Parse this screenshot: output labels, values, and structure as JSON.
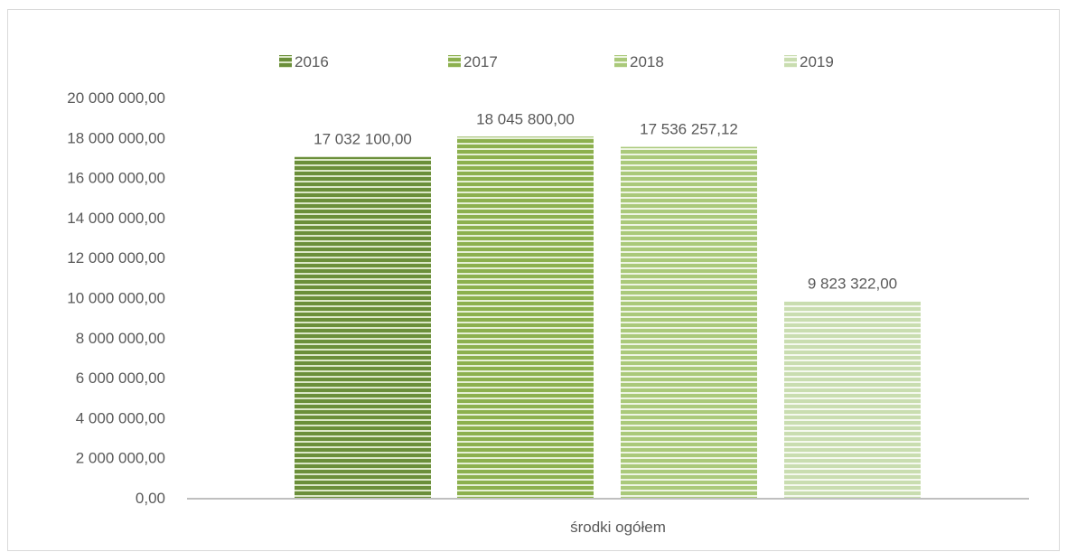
{
  "chart_data": {
    "type": "bar",
    "categories": [
      "środki ogółem"
    ],
    "series": [
      {
        "name": "2016",
        "values": [
          17032100.0
        ],
        "label": "17 032 100,00",
        "color": "#6b8f3a",
        "stripe": "#dce8c8"
      },
      {
        "name": "2017",
        "values": [
          18045800.0
        ],
        "label": "18 045 800,00",
        "color": "#8cb04e",
        "stripe": "#e6f0d6"
      },
      {
        "name": "2018",
        "values": [
          17536257.12
        ],
        "label": "17 536 257,12",
        "color": "#aac97a",
        "stripe": "#eef5e3"
      },
      {
        "name": "2019",
        "values": [
          9823322.0
        ],
        "label": "9 823 322,00",
        "color": "#c9ddb0",
        "stripe": "#f5f9ef"
      }
    ],
    "ylim": [
      0,
      20000000
    ],
    "yticks": [
      0,
      2000000,
      4000000,
      6000000,
      8000000,
      10000000,
      12000000,
      14000000,
      16000000,
      18000000,
      20000000
    ],
    "ytick_labels": [
      "0,00",
      "2 000 000,00",
      "4 000 000,00",
      "6 000 000,00",
      "8 000 000,00",
      "10 000 000,00",
      "12 000 000,00",
      "14 000 000,00",
      "16 000 000,00",
      "18 000 000,00",
      "20 000 000,00"
    ],
    "title": "",
    "xlabel": "",
    "ylabel": "",
    "grid": false,
    "legend_position": "top",
    "axis_color": "#bfbfbf"
  }
}
